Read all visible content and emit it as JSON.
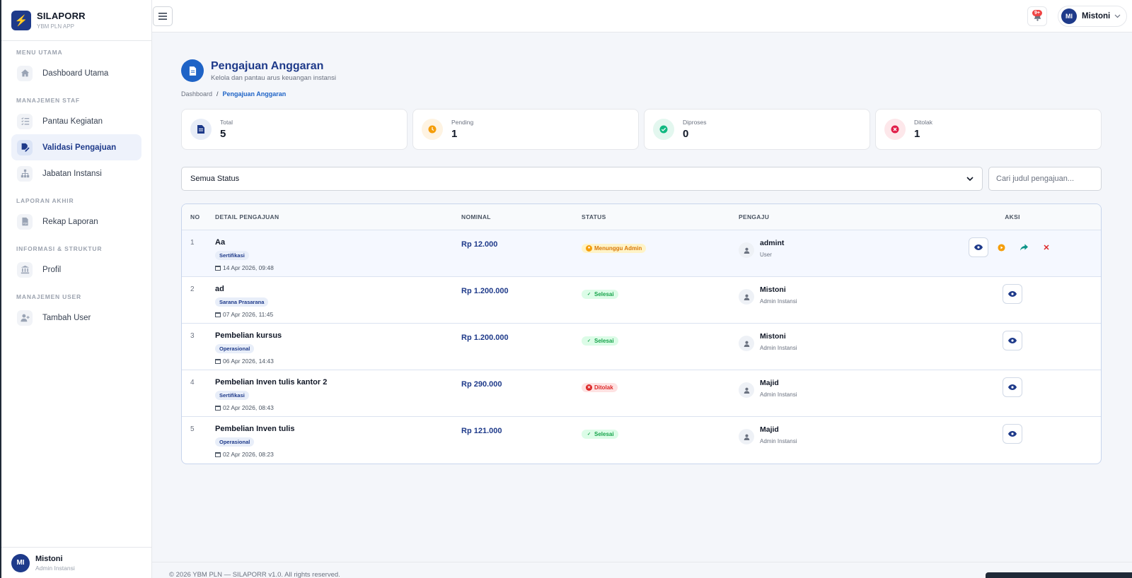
{
  "brand": {
    "title": "SILAPORR",
    "subtitle": "YBM PLN APP"
  },
  "sidebar": {
    "sections": [
      {
        "title": "MENU UTAMA",
        "items": [
          {
            "label": "Dashboard Utama",
            "icon": "home-icon"
          }
        ]
      },
      {
        "title": "MANAJEMEN STAF",
        "items": [
          {
            "label": "Pantau Kegiatan",
            "icon": "tasks-icon"
          },
          {
            "label": "Validasi Pengajuan",
            "icon": "file-signature-icon",
            "active": true
          },
          {
            "label": "Jabatan Instansi",
            "icon": "sitemap-icon"
          }
        ]
      },
      {
        "title": "LAPORAN AKHIR",
        "items": [
          {
            "label": "Rekap Laporan",
            "icon": "file-pdf-icon"
          }
        ]
      },
      {
        "title": "INFORMASI & STRUKTUR",
        "items": [
          {
            "label": "Profil",
            "icon": "landmark-icon"
          }
        ]
      },
      {
        "title": "MANAJEMEN USER",
        "items": [
          {
            "label": "Tambah User",
            "icon": "user-plus-icon"
          }
        ]
      }
    ],
    "footer": {
      "initials": "MI",
      "name": "Mistoni",
      "role": "Admin Instansi"
    }
  },
  "topbar": {
    "notif_badge": "9+",
    "user_initials": "MI",
    "user_name": "Mistoni"
  },
  "page": {
    "title": "Pengajuan Anggaran",
    "subtitle": "Kelola dan pantau arus keuangan instansi",
    "breadcrumb_home": "Dashboard",
    "breadcrumb_sep": "/",
    "breadcrumb_current": "Pengajuan Anggaran"
  },
  "stats": [
    {
      "label": "Total",
      "value": "5",
      "color": "#1e3a8a",
      "bg": "#e8edf7"
    },
    {
      "label": "Pending",
      "value": "1",
      "color": "#f59e0b",
      "bg": "#fef3e2"
    },
    {
      "label": "Diproses",
      "value": "0",
      "color": "#10b981",
      "bg": "#e3f7ef"
    },
    {
      "label": "Ditolak",
      "value": "1",
      "color": "#e11d48",
      "bg": "#fde7ea"
    }
  ],
  "filters": {
    "status_value": "Semua Status",
    "search_placeholder": "Cari judul pengajuan..."
  },
  "table": {
    "headers": {
      "no": "NO",
      "detail": "DETAIL PENGAJUAN",
      "nominal": "NOMINAL",
      "status": "STATUS",
      "pengaju": "PENGAJU",
      "aksi": "AKSI"
    },
    "rows": [
      {
        "no": "1",
        "title": "Aa",
        "tag": "Sertifikasi",
        "date": "14 Apr 2026, 09:48",
        "nominal": "Rp 12.000",
        "status": "Menunggu Admin",
        "status_type": "wait",
        "pengaju": "admint",
        "role": "User"
      },
      {
        "no": "2",
        "title": "ad",
        "tag": "Sarana Prasarana",
        "date": "07 Apr 2026, 11:45",
        "nominal": "Rp 1.200.000",
        "status": "Selesai",
        "status_type": "ok",
        "pengaju": "Mistoni",
        "role": "Admin Instansi"
      },
      {
        "no": "3",
        "title": "Pembelian kursus",
        "tag": "Operasional",
        "date": "06 Apr 2026, 14:43",
        "nominal": "Rp 1.200.000",
        "status": "Selesai",
        "status_type": "ok",
        "pengaju": "Mistoni",
        "role": "Admin Instansi"
      },
      {
        "no": "4",
        "title": "Pembelian Inven tulis kantor 2",
        "tag": "Sertifikasi",
        "date": "02 Apr 2026, 08:43",
        "nominal": "Rp 290.000",
        "status": "Ditolak",
        "status_type": "no",
        "pengaju": "Majid",
        "role": "Admin Instansi"
      },
      {
        "no": "5",
        "title": "Pembelian Inven tulis",
        "tag": "Operasional",
        "date": "02 Apr 2026, 08:23",
        "nominal": "Rp 121.000",
        "status": "Selesai",
        "status_type": "ok",
        "pengaju": "Majid",
        "role": "Admin Instansi"
      }
    ]
  },
  "footer": {
    "text": "© 2026 YBM PLN — SILAPORR v1.0. All rights reserved."
  }
}
